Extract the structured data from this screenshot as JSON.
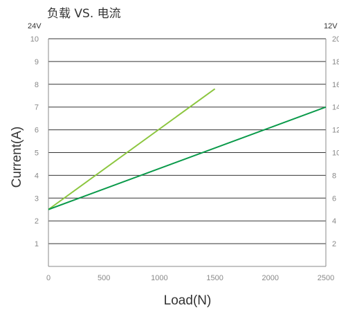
{
  "chart_data": {
    "type": "line",
    "title": "负载 VS. 电流",
    "xlabel": "Load(N)",
    "ylabel": "Current(A)",
    "left_unit": "24V",
    "right_unit": "12V",
    "xlim": [
      0,
      2500
    ],
    "ylim": [
      0,
      10
    ],
    "y2lim": [
      0,
      20
    ],
    "x_ticks": [
      0,
      500,
      1000,
      1500,
      2000,
      2500
    ],
    "y_ticks": [
      1,
      2,
      3,
      4,
      5,
      6,
      7,
      8,
      9,
      10
    ],
    "y2_ticks": [
      2,
      4,
      6,
      8,
      10,
      12,
      14,
      16,
      18,
      20
    ],
    "grid": "horizontal",
    "colors": {
      "series_24v": "#8cc63f",
      "series_12v": "#0a9a4a",
      "grid": "#333333",
      "axis": "#888888"
    },
    "series": [
      {
        "axis": "left",
        "color": "#8cc63f",
        "x": [
          0,
          1500
        ],
        "y": [
          2.5,
          7.8
        ]
      },
      {
        "axis": "right",
        "color": "#0a9a4a",
        "x": [
          0,
          2500
        ],
        "y": [
          5.0,
          14.0
        ]
      }
    ]
  }
}
